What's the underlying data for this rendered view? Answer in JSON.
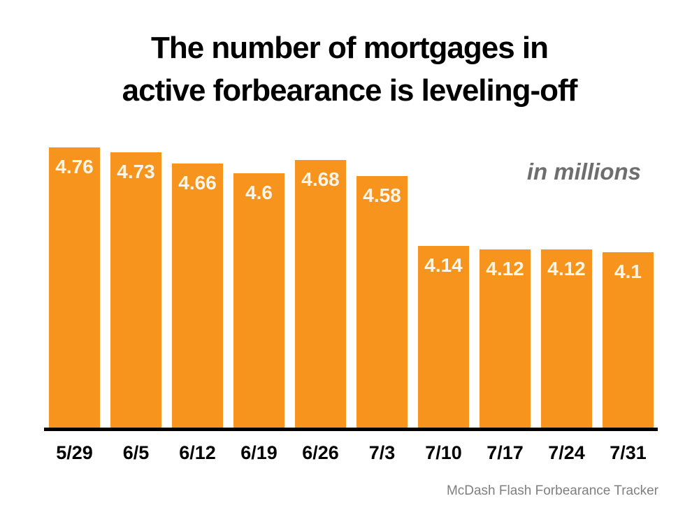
{
  "title": {
    "line1": "The number of mortgages in",
    "line2": "active forbearance is leveling-off"
  },
  "chart": {
    "units_label": "in millions",
    "source": "McDash Flash Forbearance Tracker"
  },
  "chart_data": {
    "type": "bar",
    "title": "The number of mortgages in active forbearance is leveling-off",
    "categories": [
      "5/29",
      "6/5",
      "6/12",
      "6/19",
      "6/26",
      "7/3",
      "7/10",
      "7/17",
      "7/24",
      "7/31"
    ],
    "values": [
      4.76,
      4.73,
      4.66,
      4.6,
      4.68,
      4.58,
      4.14,
      4.12,
      4.12,
      4.1
    ],
    "value_labels": [
      "4.76",
      "4.73",
      "4.66",
      "4.6",
      "4.68",
      "4.58",
      "4.14",
      "4.12",
      "4.12",
      "4.1"
    ],
    "xlabel": "",
    "ylabel": "in millions",
    "ylim": [
      3.0,
      4.8
    ],
    "grid": false,
    "legend": "none",
    "bar_color": "#F7941E",
    "value_label_color": "#FCF5E8",
    "axis_line_color": "#000000"
  }
}
